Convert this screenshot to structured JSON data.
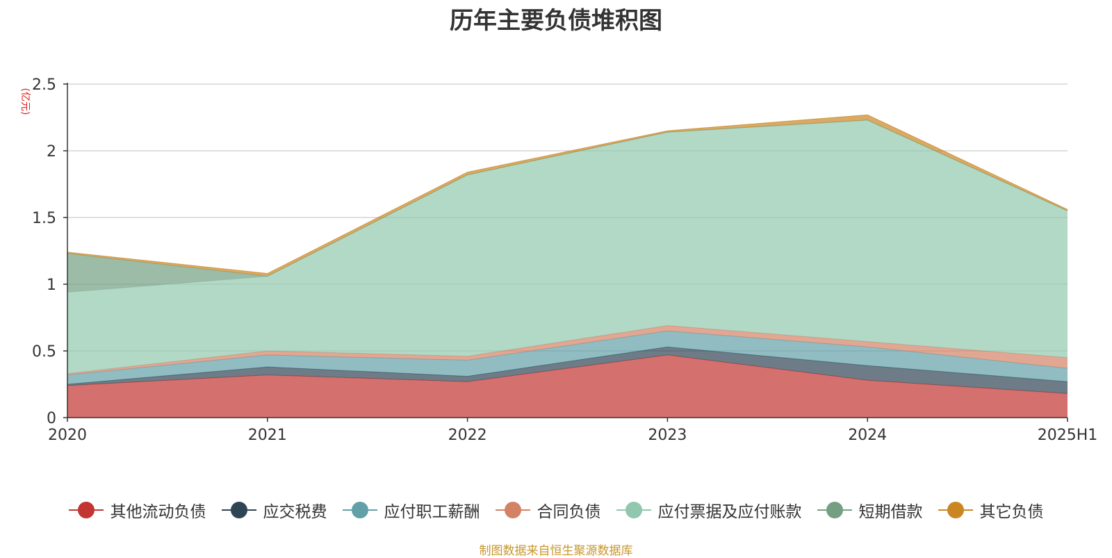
{
  "title": "历年主要负债堆积图",
  "source_text": "制图数据来自恒生聚源数据库",
  "chart_data": {
    "type": "area",
    "stacked": true,
    "title": "历年主要负债堆积图",
    "ylabel": "(亿元)",
    "xlabel": "",
    "ylim": [
      0,
      2.5
    ],
    "yticks": [
      "0",
      "0.5",
      "1",
      "1.5",
      "2",
      "2.5"
    ],
    "categories": [
      "2020",
      "2021",
      "2022",
      "2023",
      "2024",
      "2025H1"
    ],
    "grid": true,
    "legend_position": "bottom",
    "series": [
      {
        "name": "其他流动负债",
        "color": "#c23531",
        "values": [
          0.24,
          0.32,
          0.27,
          0.47,
          0.28,
          0.18
        ]
      },
      {
        "name": "应交税费",
        "color": "#2f4554",
        "values": [
          0.01,
          0.06,
          0.04,
          0.06,
          0.11,
          0.09
        ]
      },
      {
        "name": "应付职工薪酬",
        "color": "#61a0a8",
        "values": [
          0.07,
          0.09,
          0.12,
          0.12,
          0.14,
          0.1
        ]
      },
      {
        "name": "合同负债",
        "color": "#d48265",
        "values": [
          0.01,
          0.03,
          0.03,
          0.04,
          0.04,
          0.08
        ]
      },
      {
        "name": "应付票据及应付账款",
        "color": "#91c7ae",
        "values": [
          0.61,
          0.56,
          1.36,
          1.45,
          1.66,
          1.1
        ]
      },
      {
        "name": "短期借款",
        "color": "#749f83",
        "values": [
          0.29,
          0.0,
          0.0,
          0.0,
          0.0,
          0.0
        ]
      },
      {
        "name": "其它负债",
        "color": "#ca8622",
        "values": [
          0.01,
          0.02,
          0.02,
          0.01,
          0.04,
          0.01
        ]
      }
    ]
  }
}
